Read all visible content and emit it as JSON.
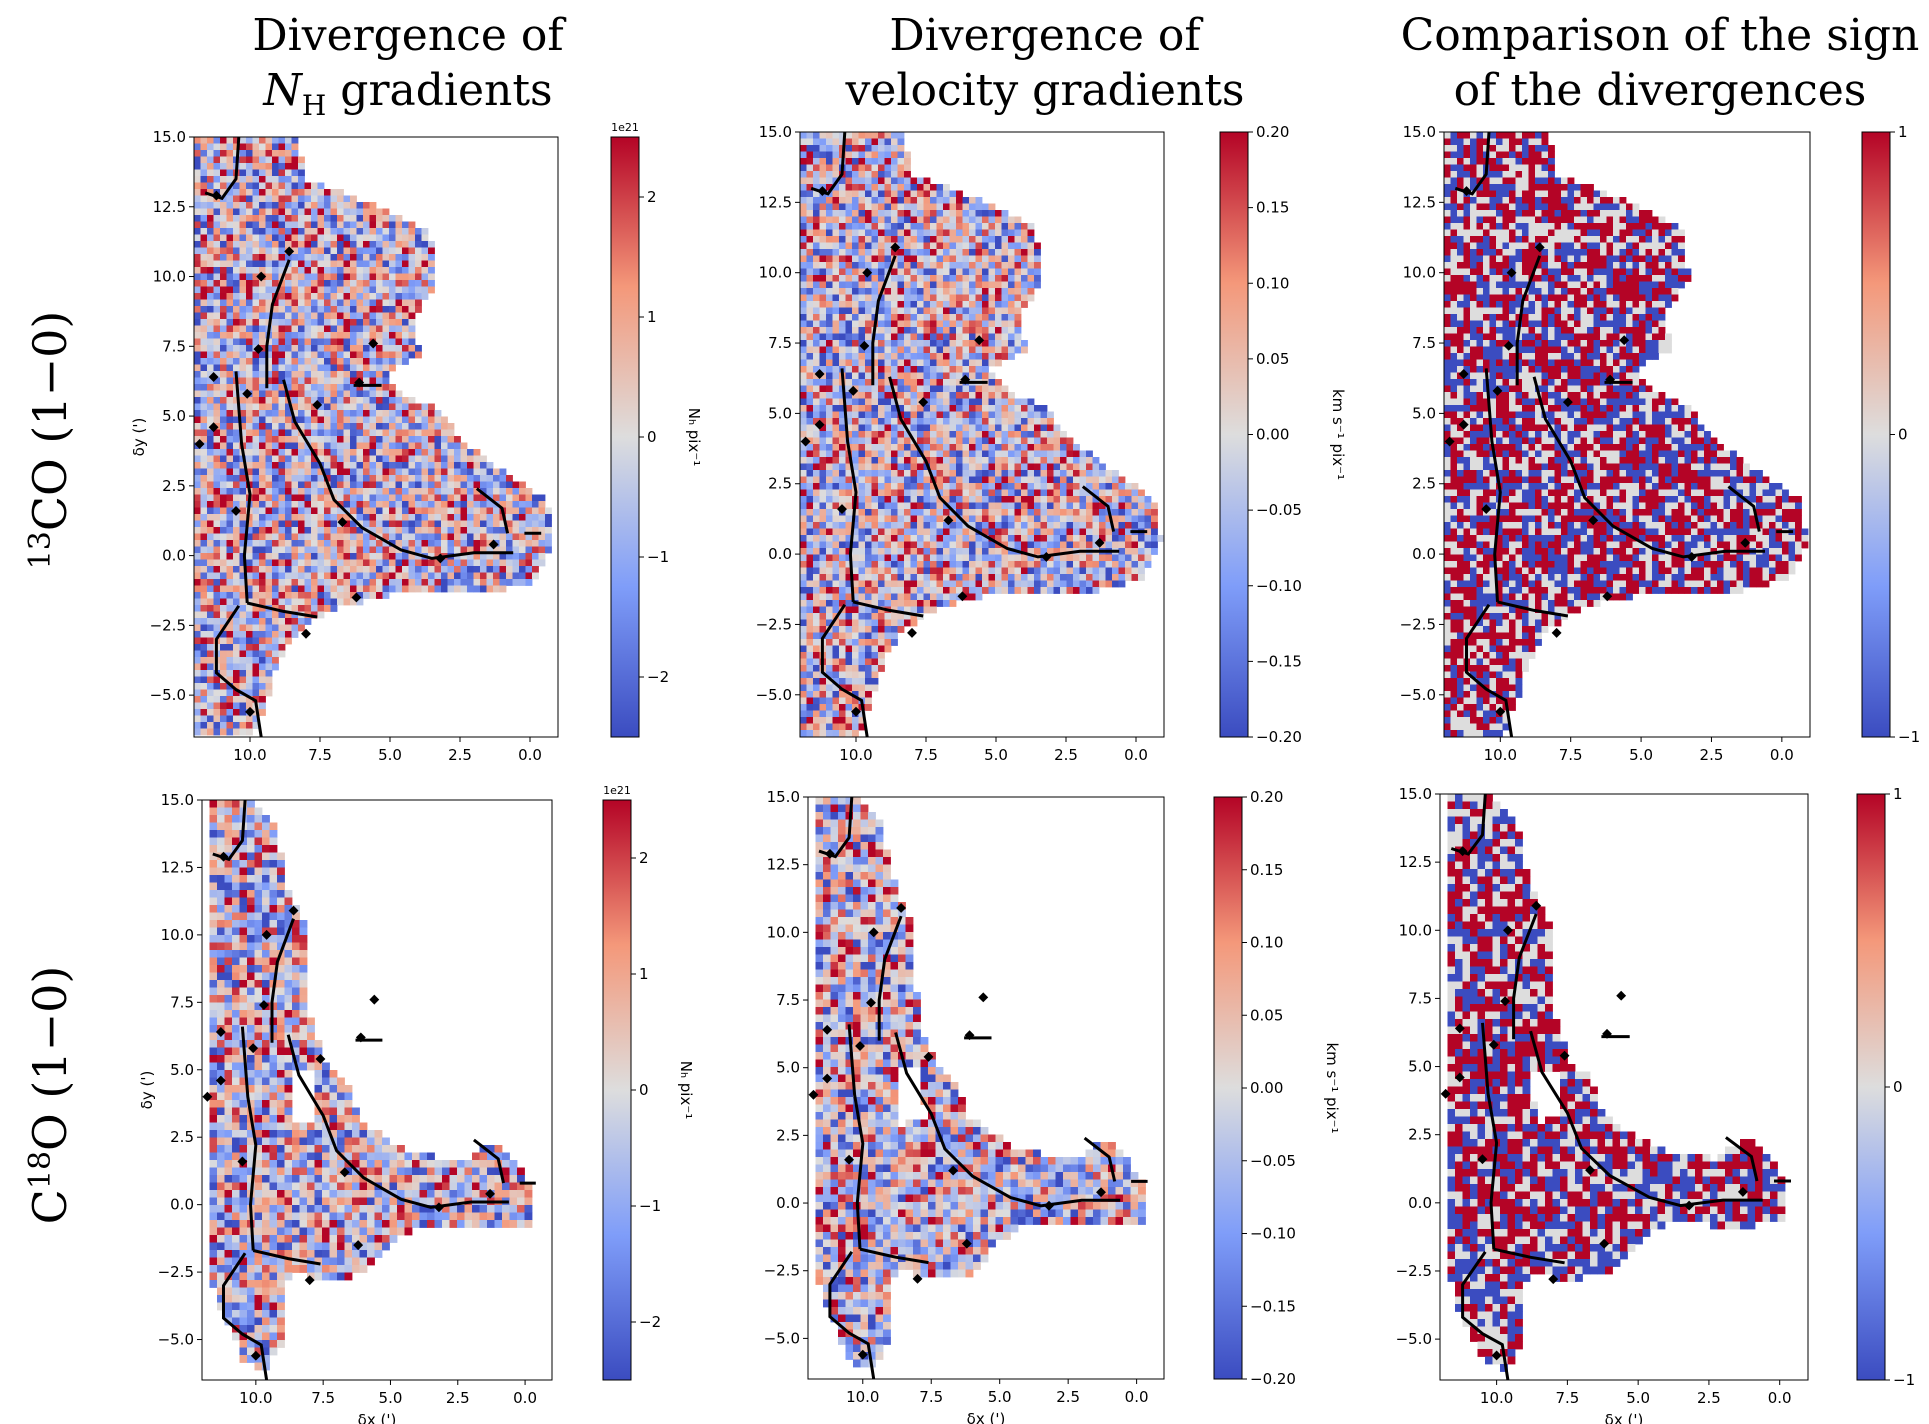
{
  "column_titles": [
    {
      "line1": "Divergence of",
      "line2_main": "N",
      "line2_sub": "H",
      "line2_rest": " gradients"
    },
    {
      "line1": "Divergence of",
      "line2_main": "velocity gradients",
      "line2_sub": "",
      "line2_rest": ""
    },
    {
      "line1": "Comparison of the sign",
      "line2_main": "of the divergences",
      "line2_sub": "",
      "line2_rest": ""
    }
  ],
  "row_labels": [
    {
      "sup": "13",
      "main": "CO (1−0)",
      "pre": ""
    },
    {
      "sup": "18",
      "main": "O (1−0)",
      "pre": "C"
    }
  ],
  "colors": {
    "cmap_low": "#3b4cc0",
    "cmap_mid": "#dddddd",
    "cmap_high": "#b40426",
    "skeleton": "#000000"
  },
  "chart_data": [
    {
      "type": "heatmap",
      "panel": "13CO N_H divergence",
      "xlabel": "",
      "ylabel": "δy (')",
      "xlim": [
        12,
        -1
      ],
      "ylim": [
        -6.5,
        15
      ],
      "xticks": [
        "10.0",
        "7.5",
        "5.0",
        "2.5",
        "0.0"
      ],
      "yticks": [
        "−5.0",
        "−2.5",
        "0.0",
        "2.5",
        "5.0",
        "7.5",
        "10.0",
        "12.5",
        "15.0"
      ],
      "colorbar": {
        "label": "N_H pix^-1",
        "label_display": "Nₕ pix⁻¹",
        "offset": "1e21",
        "range": [
          -2.5,
          2.5
        ],
        "ticks": [
          "2",
          "1",
          "0",
          "−1",
          "−2"
        ]
      }
    },
    {
      "type": "heatmap",
      "panel": "13CO velocity divergence",
      "xlabel": "",
      "ylabel": "",
      "xlim": [
        12,
        -1
      ],
      "ylim": [
        -6.5,
        15
      ],
      "xticks": [
        "10.0",
        "7.5",
        "5.0",
        "2.5",
        "0.0"
      ],
      "yticks": [
        "−5.0",
        "−2.5",
        "0.0",
        "2.5",
        "5.0",
        "7.5",
        "10.0",
        "12.5",
        "15.0"
      ],
      "colorbar": {
        "label": "km s⁻¹ pix⁻¹",
        "offset": "",
        "range": [
          -0.2,
          0.2
        ],
        "ticks": [
          "0.20",
          "0.15",
          "0.10",
          "0.05",
          "0.00",
          "−0.05",
          "−0.10",
          "−0.15",
          "−0.20"
        ]
      }
    },
    {
      "type": "heatmap",
      "panel": "13CO sign comparison",
      "xlabel": "",
      "ylabel": "",
      "xlim": [
        12,
        -1
      ],
      "ylim": [
        -6.5,
        15
      ],
      "xticks": [
        "10.0",
        "7.5",
        "5.0",
        "2.5",
        "0.0"
      ],
      "yticks": [
        "−5.0",
        "−2.5",
        "0.0",
        "2.5",
        "5.0",
        "7.5",
        "10.0",
        "12.5",
        "15.0"
      ],
      "colorbar": {
        "label": "",
        "offset": "",
        "range": [
          -1,
          1
        ],
        "ticks": [
          "1",
          "0",
          "−1"
        ]
      }
    },
    {
      "type": "heatmap",
      "panel": "C18O N_H divergence",
      "xlabel": "δx (')",
      "ylabel": "δy (')",
      "xlim": [
        12,
        -1
      ],
      "ylim": [
        -6.5,
        15
      ],
      "xticks": [
        "10.0",
        "7.5",
        "5.0",
        "2.5",
        "0.0"
      ],
      "yticks": [
        "−5.0",
        "−2.5",
        "0.0",
        "2.5",
        "5.0",
        "7.5",
        "10.0",
        "12.5",
        "15.0"
      ],
      "colorbar": {
        "label": "N_H pix^-1",
        "label_display": "Nₕ pix⁻¹",
        "offset": "1e21",
        "range": [
          -2.5,
          2.5
        ],
        "ticks": [
          "2",
          "1",
          "0",
          "−1",
          "−2"
        ]
      }
    },
    {
      "type": "heatmap",
      "panel": "C18O velocity divergence",
      "xlabel": "δx (')",
      "ylabel": "",
      "xlim": [
        12,
        -1
      ],
      "ylim": [
        -6.5,
        15
      ],
      "xticks": [
        "10.0",
        "7.5",
        "5.0",
        "2.5",
        "0.0"
      ],
      "yticks": [
        "−5.0",
        "−2.5",
        "0.0",
        "2.5",
        "5.0",
        "7.5",
        "10.0",
        "12.5",
        "15.0"
      ],
      "colorbar": {
        "label": "km s⁻¹ pix⁻¹",
        "offset": "",
        "range": [
          -0.2,
          0.2
        ],
        "ticks": [
          "0.20",
          "0.15",
          "0.10",
          "0.05",
          "0.00",
          "−0.05",
          "−0.10",
          "−0.15",
          "−0.20"
        ]
      }
    },
    {
      "type": "heatmap",
      "panel": "C18O sign comparison",
      "xlabel": "δx (')",
      "ylabel": "",
      "xlim": [
        12,
        -1
      ],
      "ylim": [
        -6.5,
        15
      ],
      "xticks": [
        "10.0",
        "7.5",
        "5.0",
        "2.5",
        "0.0"
      ],
      "yticks": [
        "−5.0",
        "−2.5",
        "0.0",
        "2.5",
        "5.0",
        "7.5",
        "10.0",
        "12.5",
        "15.0"
      ],
      "colorbar": {
        "label": "",
        "offset": "",
        "range": [
          -1,
          1
        ],
        "ticks": [
          "1",
          "0",
          "−1"
        ]
      }
    }
  ]
}
